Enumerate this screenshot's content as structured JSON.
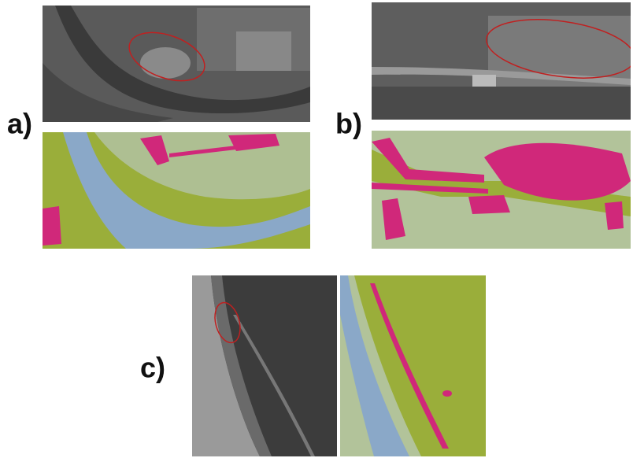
{
  "panels": {
    "a": {
      "label": "a)"
    },
    "b": {
      "label": "b)"
    },
    "c": {
      "label": "c)"
    }
  }
}
